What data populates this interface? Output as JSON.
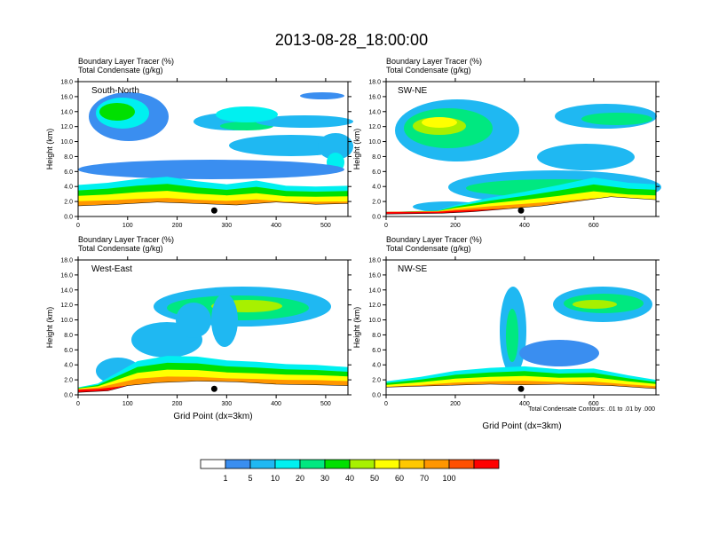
{
  "title": "2013-08-28_18:00:00",
  "panel_subtitle_line1": "Boundary Layer Tracer   (%)",
  "panel_subtitle_line2": "Total Condensate   (g/kg)",
  "ylabel": "Height (km)",
  "xlabel": "Grid Point (dx=3km)",
  "contour_note": "Total Condensate Contours: .01 to .01 by .000",
  "colorbar": {
    "labels": [
      "1",
      "5",
      "10",
      "20",
      "30",
      "40",
      "50",
      "60",
      "70",
      "100"
    ],
    "colors": [
      "#ffffff",
      "#3a8ef0",
      "#1fb8f2",
      "#00f0f0",
      "#00e880",
      "#00e000",
      "#a8f000",
      "#ffff00",
      "#ffc800",
      "#ff9600",
      "#ff5000",
      "#ff0000"
    ]
  },
  "chart_data": [
    {
      "type": "heatmap",
      "name": "South-North",
      "ylim": [
        0,
        18
      ],
      "yticks": [
        "0.0",
        "2.0",
        "4.0",
        "6.0",
        "8.0",
        "10.0",
        "12.0",
        "14.0",
        "16.0",
        "18.0"
      ],
      "xlim": [
        0,
        545
      ],
      "xticks": [
        0,
        100,
        200,
        300,
        400,
        500
      ],
      "marker_x": 275,
      "boundary_layer_top_km": [
        [
          0,
          4.2
        ],
        [
          60,
          4.5
        ],
        [
          120,
          5.0
        ],
        [
          180,
          5.3
        ],
        [
          240,
          4.7
        ],
        [
          300,
          4.3
        ],
        [
          360,
          4.8
        ],
        [
          420,
          4.1
        ],
        [
          480,
          4.0
        ],
        [
          545,
          4.1
        ]
      ],
      "terrain_km": [
        [
          0,
          1.4
        ],
        [
          80,
          1.6
        ],
        [
          160,
          1.9
        ],
        [
          240,
          1.7
        ],
        [
          320,
          1.5
        ],
        [
          400,
          1.9
        ],
        [
          480,
          1.6
        ],
        [
          545,
          1.7
        ]
      ]
    },
    {
      "type": "heatmap",
      "name": "SW-NE",
      "ylim": [
        0,
        18
      ],
      "yticks": [
        "0.0",
        "2.0",
        "4.0",
        "6.0",
        "8.0",
        "10.0",
        "12.0",
        "14.0",
        "16.0",
        "18.0"
      ],
      "xlim": [
        0,
        780
      ],
      "xticks": [
        0,
        200,
        400,
        600
      ],
      "marker_x": 390,
      "boundary_layer_top_km": [
        [
          0,
          0.6
        ],
        [
          150,
          0.8
        ],
        [
          200,
          1.5
        ],
        [
          300,
          2.5
        ],
        [
          400,
          3.3
        ],
        [
          500,
          4.2
        ],
        [
          600,
          5.2
        ],
        [
          700,
          4.5
        ],
        [
          780,
          4.3
        ]
      ],
      "terrain_km": [
        [
          0,
          0.3
        ],
        [
          160,
          0.4
        ],
        [
          250,
          0.6
        ],
        [
          350,
          1.0
        ],
        [
          450,
          1.4
        ],
        [
          550,
          2.0
        ],
        [
          650,
          2.6
        ],
        [
          780,
          2.2
        ]
      ]
    },
    {
      "type": "heatmap",
      "name": "West-East",
      "ylim": [
        0,
        18
      ],
      "yticks": [
        "0.0",
        "2.0",
        "4.0",
        "6.0",
        "8.0",
        "10.0",
        "12.0",
        "14.0",
        "16.0",
        "18.0"
      ],
      "xlim": [
        0,
        545
      ],
      "xticks": [
        0,
        100,
        200,
        300,
        400,
        500
      ],
      "marker_x": 275,
      "boundary_layer_top_km": [
        [
          0,
          1.0
        ],
        [
          40,
          1.5
        ],
        [
          80,
          3.0
        ],
        [
          120,
          4.5
        ],
        [
          180,
          5.2
        ],
        [
          240,
          5.1
        ],
        [
          300,
          4.6
        ],
        [
          360,
          4.4
        ],
        [
          420,
          4.1
        ],
        [
          480,
          4.0
        ],
        [
          545,
          3.7
        ]
      ],
      "terrain_km": [
        [
          0,
          0.3
        ],
        [
          60,
          0.5
        ],
        [
          100,
          1.2
        ],
        [
          160,
          1.6
        ],
        [
          240,
          1.8
        ],
        [
          320,
          1.7
        ],
        [
          400,
          1.4
        ],
        [
          480,
          1.3
        ],
        [
          545,
          1.2
        ]
      ]
    },
    {
      "type": "heatmap",
      "name": "NW-SE",
      "ylim": [
        0,
        18
      ],
      "yticks": [
        "0.0",
        "2.0",
        "4.0",
        "6.0",
        "8.0",
        "10.0",
        "12.0",
        "14.0",
        "16.0",
        "18.0"
      ],
      "xlim": [
        0,
        780
      ],
      "xticks": [
        0,
        200,
        400,
        600
      ],
      "marker_x": 390,
      "boundary_layer_top_km": [
        [
          0,
          1.8
        ],
        [
          100,
          2.4
        ],
        [
          200,
          3.2
        ],
        [
          300,
          3.6
        ],
        [
          400,
          3.8
        ],
        [
          500,
          3.4
        ],
        [
          600,
          3.5
        ],
        [
          700,
          2.6
        ],
        [
          780,
          2.0
        ]
      ],
      "terrain_km": [
        [
          0,
          1.0
        ],
        [
          150,
          1.2
        ],
        [
          300,
          1.4
        ],
        [
          400,
          1.3
        ],
        [
          500,
          1.4
        ],
        [
          650,
          1.2
        ],
        [
          780,
          0.8
        ]
      ]
    }
  ]
}
